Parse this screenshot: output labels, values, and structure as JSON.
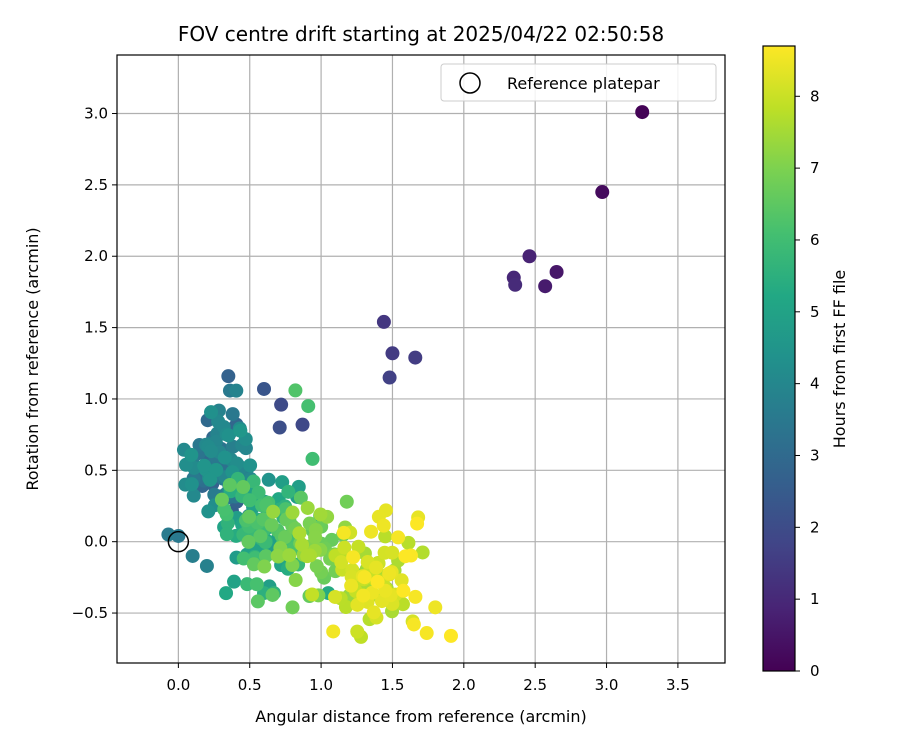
{
  "chart_data": {
    "type": "scatter",
    "title": "FOV centre drift starting at 2025/04/22 02:50:58",
    "xlabel": "Angular distance from reference (arcmin)",
    "ylabel": "Rotation from reference (arcmin)",
    "xlim": [
      -0.43,
      3.83
    ],
    "ylim": [
      -0.85,
      3.41
    ],
    "xticks": [
      0.0,
      0.5,
      1.0,
      1.5,
      2.0,
      2.5,
      3.0,
      3.5
    ],
    "xtick_labels": [
      "0.0",
      "0.5",
      "1.0",
      "1.5",
      "2.0",
      "2.5",
      "3.0",
      "3.5"
    ],
    "yticks": [
      -0.5,
      0.0,
      0.5,
      1.0,
      1.5,
      2.0,
      2.5,
      3.0
    ],
    "ytick_labels": [
      "−0.5",
      "0.0",
      "0.5",
      "1.0",
      "1.5",
      "2.0",
      "2.5",
      "3.0"
    ],
    "grid": true,
    "legend": {
      "placement": "top-right",
      "entries": [
        "Reference platepar"
      ]
    },
    "reference_point": {
      "x": 0.0,
      "y": 0.0
    },
    "colorbar": {
      "label": "Hours from first FF file",
      "colormap": "viridis",
      "range": [
        0,
        8.7
      ],
      "ticks": [
        0,
        1,
        2,
        3,
        4,
        5,
        6,
        7,
        8
      ],
      "tick_labels": [
        "0",
        "1",
        "2",
        "3",
        "4",
        "5",
        "6",
        "7",
        "8"
      ]
    },
    "fixed_points": [
      {
        "x": 3.25,
        "y": 3.01,
        "h": 0.05
      },
      {
        "x": 2.97,
        "y": 2.45,
        "h": 0.25
      },
      {
        "x": 2.65,
        "y": 1.89,
        "h": 0.55
      },
      {
        "x": 2.57,
        "y": 1.79,
        "h": 0.65
      },
      {
        "x": 2.46,
        "y": 2.0,
        "h": 0.85
      },
      {
        "x": 2.35,
        "y": 1.85,
        "h": 0.95
      },
      {
        "x": 2.36,
        "y": 1.8,
        "h": 1.05
      },
      {
        "x": 1.44,
        "y": 1.54,
        "h": 1.4
      },
      {
        "x": 1.5,
        "y": 1.32,
        "h": 1.5
      },
      {
        "x": 1.66,
        "y": 1.29,
        "h": 1.55
      },
      {
        "x": 1.48,
        "y": 1.15,
        "h": 1.65
      },
      {
        "x": 0.72,
        "y": 0.96,
        "h": 1.95
      },
      {
        "x": 0.87,
        "y": 0.82,
        "h": 1.9
      },
      {
        "x": 0.71,
        "y": 0.8,
        "h": 2.1
      },
      {
        "x": 0.6,
        "y": 1.07,
        "h": 2.3
      },
      {
        "x": 0.82,
        "y": 1.06,
        "h": 6.3
      },
      {
        "x": 0.91,
        "y": 0.95,
        "h": 6.1
      },
      {
        "x": 0.94,
        "y": 0.58,
        "h": 6.0
      },
      {
        "x": 0.0,
        "y": 0.04,
        "h": 3.5
      },
      {
        "x": -0.07,
        "y": 0.05,
        "h": 3.6
      },
      {
        "x": 0.1,
        "y": -0.1,
        "h": 3.7
      },
      {
        "x": 0.2,
        "y": -0.17,
        "h": 3.8
      },
      {
        "x": 0.39,
        "y": -0.28,
        "h": 5.0
      },
      {
        "x": 0.6,
        "y": -0.36,
        "h": 5.5
      },
      {
        "x": 0.67,
        "y": -0.36,
        "h": 5.6
      },
      {
        "x": 0.8,
        "y": -0.46,
        "h": 6.8
      },
      {
        "x": 1.05,
        "y": -0.36,
        "h": 5.3
      },
      {
        "x": 1.18,
        "y": 0.28,
        "h": 6.8
      },
      {
        "x": 1.35,
        "y": 0.07,
        "h": 8.5
      },
      {
        "x": 1.54,
        "y": 0.03,
        "h": 8.6
      },
      {
        "x": 1.8,
        "y": -0.46,
        "h": 8.5
      },
      {
        "x": 1.74,
        "y": -0.64,
        "h": 8.6
      },
      {
        "x": 1.91,
        "y": -0.66,
        "h": 8.7
      },
      {
        "x": 1.65,
        "y": -0.58,
        "h": 8.6
      },
      {
        "x": 1.68,
        "y": 0.17,
        "h": 8.4
      }
    ],
    "clusters": [
      {
        "n": 90,
        "cx": 0.3,
        "cy": 0.58,
        "sx": 0.12,
        "sy": 0.2,
        "h0": 2.6,
        "h1": 4.6
      },
      {
        "n": 95,
        "cx": 0.6,
        "cy": 0.15,
        "sx": 0.17,
        "sy": 0.22,
        "h0": 4.6,
        "h1": 6.7
      },
      {
        "n": 45,
        "cx": 0.95,
        "cy": -0.05,
        "sx": 0.14,
        "sy": 0.15,
        "h0": 6.6,
        "h1": 7.6
      },
      {
        "n": 75,
        "cx": 1.4,
        "cy": -0.25,
        "sx": 0.16,
        "sy": 0.18,
        "h0": 7.5,
        "h1": 8.7
      }
    ]
  }
}
